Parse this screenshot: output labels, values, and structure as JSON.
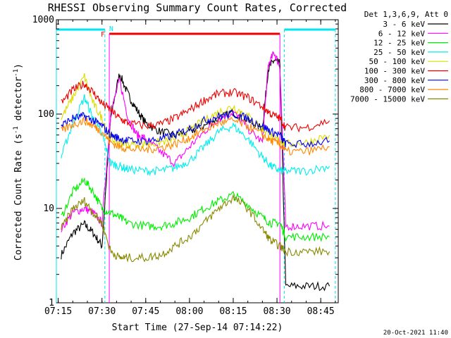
{
  "chart_data": {
    "type": "line",
    "title": "RHESSI Observing Summary Count Rates, Corrected",
    "xlabel": "Start Time (27-Sep-14 07:14:22)",
    "ylabel": "Corrected Count Rate (s⁻¹ detector⁻¹)",
    "ylabel_parts": [
      "Corrected Count Rate (s",
      "-1",
      " detector",
      "-1",
      ")"
    ],
    "y_scale": "log",
    "xlim": [
      "07:14:22",
      "08:51:00"
    ],
    "ylim": [
      1,
      1000
    ],
    "x_ticks": [
      "07:15",
      "07:30",
      "07:45",
      "08:00",
      "08:15",
      "08:30",
      "08:45"
    ],
    "y_ticks": [
      "1",
      "10",
      "100",
      "1000"
    ],
    "legend_header": "Det 1,3,6,9, Att 0",
    "legend_position": "top-right, outside plot",
    "timestamp": "20-Oct-2021 11:40",
    "markers": {
      "night_bars": [
        [
          "07:14:22",
          "07:31:00"
        ],
        [
          "08:32:30",
          "08:50:00"
        ]
      ],
      "night_label": "N",
      "flare_bar": [
        "07:32:30",
        "08:31:00"
      ],
      "flare_label": "F",
      "night_color": "#00e5ee",
      "flare_color": "#ee0000"
    },
    "series": [
      {
        "name": "3 - 6 keV",
        "color": "#000000",
        "x": [
          "07:16",
          "07:20",
          "07:24",
          "07:27",
          "07:30",
          "07:33",
          "07:36",
          "07:39",
          "07:42",
          "07:45",
          "07:50",
          "07:55",
          "08:00",
          "08:05",
          "08:10",
          "08:15",
          "08:20",
          "08:25",
          "08:27",
          "08:29",
          "08:31",
          "08:33",
          "08:40",
          "08:48"
        ],
        "y": [
          3.2,
          5.5,
          6.8,
          5.5,
          4.0,
          95,
          270,
          160,
          110,
          80,
          65,
          60,
          65,
          75,
          90,
          105,
          85,
          70,
          300,
          370,
          340,
          1.5,
          1.5,
          1.5
        ]
      },
      {
        "name": "6 - 12 keV",
        "color": "#ff00ff",
        "x": [
          "07:16",
          "07:20",
          "07:24",
          "07:27",
          "07:30",
          "07:33",
          "07:36",
          "07:39",
          "07:42",
          "07:45",
          "07:50",
          "07:55",
          "08:00",
          "08:05",
          "08:10",
          "08:15",
          "08:20",
          "08:25",
          "08:27",
          "08:29",
          "08:31",
          "08:33",
          "08:40",
          "08:48"
        ],
        "y": [
          6,
          9,
          10,
          9,
          7,
          100,
          230,
          90,
          60,
          55,
          40,
          30,
          45,
          65,
          90,
          105,
          70,
          50,
          330,
          450,
          320,
          6.5,
          6.5,
          6.5
        ]
      },
      {
        "name": "12 - 25 keV",
        "color": "#00ee00",
        "x": [
          "07:16",
          "07:20",
          "07:24",
          "07:27",
          "07:30",
          "07:33",
          "07:36",
          "07:39",
          "07:45",
          "07:50",
          "07:55",
          "08:00",
          "08:05",
          "08:10",
          "08:15",
          "08:20",
          "08:25",
          "08:28",
          "08:31",
          "08:33",
          "08:40",
          "08:48"
        ],
        "y": [
          8,
          15,
          20,
          15,
          10,
          9,
          8,
          7,
          6.5,
          6.5,
          7,
          8,
          10,
          12,
          14,
          11,
          8,
          7,
          7,
          5,
          5,
          5
        ]
      },
      {
        "name": "25 - 50 keV",
        "color": "#00eeee",
        "x": [
          "07:16",
          "07:20",
          "07:24",
          "07:27",
          "07:30",
          "07:33",
          "07:36",
          "07:39",
          "07:45",
          "07:50",
          "07:55",
          "08:00",
          "08:05",
          "08:10",
          "08:15",
          "08:20",
          "08:25",
          "08:28",
          "08:31",
          "08:33",
          "08:40",
          "08:48"
        ],
        "y": [
          35,
          80,
          150,
          90,
          60,
          30,
          28,
          26,
          25,
          25,
          27,
          32,
          45,
          65,
          75,
          55,
          35,
          28,
          25,
          25,
          25,
          28
        ]
      },
      {
        "name": "50 - 100 keV",
        "color": "#dddd00",
        "x": [
          "07:16",
          "07:20",
          "07:24",
          "07:27",
          "07:30",
          "07:33",
          "07:36",
          "07:39",
          "07:45",
          "07:50",
          "07:55",
          "08:00",
          "08:05",
          "08:10",
          "08:15",
          "08:20",
          "08:25",
          "08:28",
          "08:31",
          "08:33",
          "08:40",
          "08:48"
        ],
        "y": [
          90,
          150,
          250,
          130,
          90,
          55,
          50,
          48,
          48,
          50,
          55,
          68,
          85,
          105,
          120,
          95,
          70,
          58,
          52,
          48,
          50,
          60
        ]
      },
      {
        "name": "100 - 300 keV",
        "color": "#ee0000",
        "x": [
          "07:16",
          "07:20",
          "07:24",
          "07:27",
          "07:30",
          "07:33",
          "07:36",
          "07:39",
          "07:45",
          "07:50",
          "07:55",
          "08:00",
          "08:05",
          "08:10",
          "08:15",
          "08:20",
          "08:25",
          "08:28",
          "08:31",
          "08:33",
          "08:40",
          "08:48"
        ],
        "y": [
          130,
          180,
          210,
          170,
          130,
          110,
          90,
          80,
          75,
          78,
          90,
          110,
          140,
          165,
          170,
          150,
          120,
          100,
          90,
          72,
          72,
          85
        ]
      },
      {
        "name": "300 - 800 keV",
        "color": "#0000ee",
        "x": [
          "07:16",
          "07:20",
          "07:24",
          "07:27",
          "07:30",
          "07:33",
          "07:36",
          "07:39",
          "07:45",
          "07:50",
          "07:55",
          "08:00",
          "08:05",
          "08:10",
          "08:15",
          "08:20",
          "08:25",
          "08:28",
          "08:31",
          "08:33",
          "08:40",
          "08:48"
        ],
        "y": [
          75,
          90,
          95,
          85,
          75,
          60,
          55,
          52,
          52,
          54,
          60,
          70,
          85,
          95,
          100,
          90,
          75,
          65,
          60,
          48,
          48,
          52
        ]
      },
      {
        "name": "800 - 7000 keV",
        "color": "#ff8800",
        "x": [
          "07:16",
          "07:20",
          "07:24",
          "07:27",
          "07:30",
          "07:33",
          "07:36",
          "07:39",
          "07:45",
          "07:50",
          "07:55",
          "08:00",
          "08:05",
          "08:10",
          "08:15",
          "08:20",
          "08:25",
          "08:28",
          "08:31",
          "08:33",
          "08:40",
          "08:48"
        ],
        "y": [
          65,
          78,
          85,
          75,
          65,
          50,
          45,
          43,
          42,
          44,
          48,
          56,
          68,
          80,
          85,
          75,
          60,
          52,
          48,
          40,
          40,
          45
        ]
      },
      {
        "name": "7000 - 15000 keV",
        "color": "#888800",
        "x": [
          "07:16",
          "07:20",
          "07:24",
          "07:27",
          "07:30",
          "07:33",
          "07:36",
          "07:39",
          "07:45",
          "07:50",
          "07:55",
          "08:00",
          "08:05",
          "08:10",
          "08:15",
          "08:20",
          "08:25",
          "08:28",
          "08:31",
          "08:33",
          "08:40",
          "08:48"
        ],
        "y": [
          6,
          10,
          12,
          9,
          7,
          3.5,
          3,
          3,
          3,
          3.2,
          4,
          5,
          7,
          10,
          13,
          10,
          6,
          4.5,
          4,
          3.5,
          3.5,
          3.5
        ]
      }
    ]
  }
}
